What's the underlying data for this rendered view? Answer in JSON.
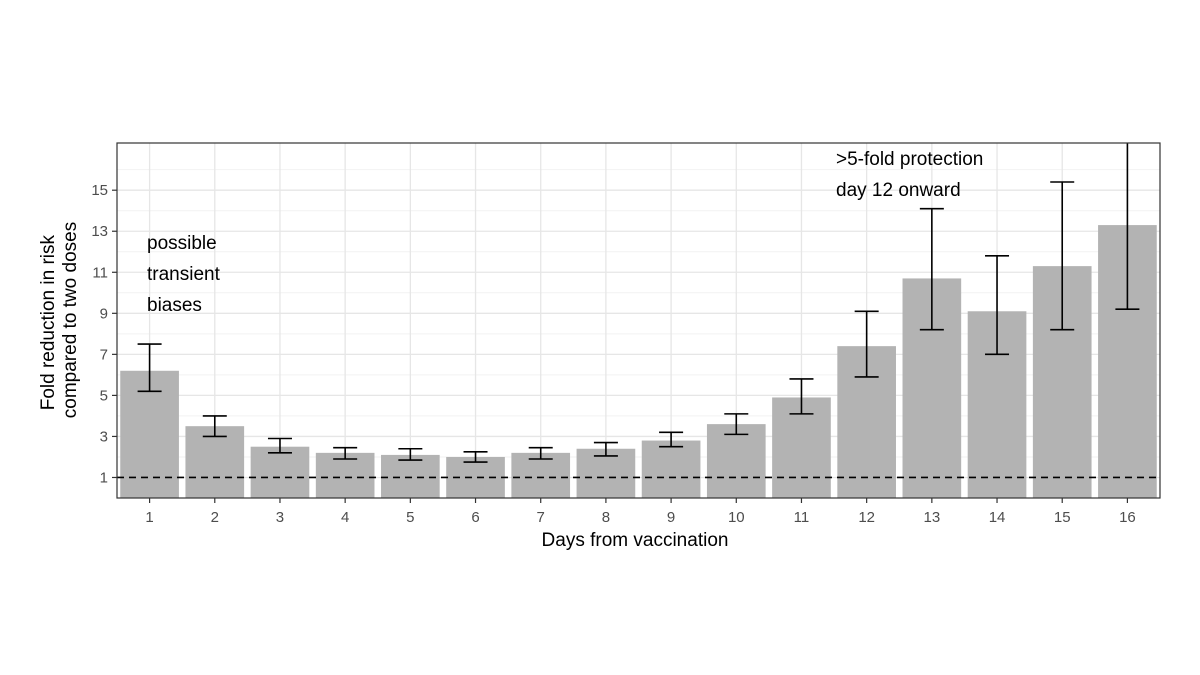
{
  "chart_data": {
    "type": "bar",
    "xlabel": "Days from vaccination",
    "ylabel_lines": [
      "Fold reduction in risk",
      "compared to two doses"
    ],
    "categories": [
      "1",
      "2",
      "3",
      "4",
      "5",
      "6",
      "7",
      "8",
      "9",
      "10",
      "11",
      "12",
      "13",
      "14",
      "15",
      "16"
    ],
    "values": [
      6.2,
      3.5,
      2.5,
      2.2,
      2.1,
      2.0,
      2.2,
      2.4,
      2.8,
      3.6,
      4.9,
      7.4,
      10.7,
      9.1,
      11.3,
      13.3
    ],
    "error_low": [
      5.2,
      3.0,
      2.2,
      1.9,
      1.85,
      1.75,
      1.9,
      2.05,
      2.5,
      3.1,
      4.1,
      5.9,
      8.2,
      7.0,
      8.2,
      9.2
    ],
    "error_high": [
      7.5,
      4.0,
      2.9,
      2.45,
      2.4,
      2.25,
      2.45,
      2.7,
      3.2,
      4.1,
      5.8,
      9.1,
      14.1,
      11.8,
      15.4,
      17.5
    ],
    "ylim": [
      0,
      17.3
    ],
    "yticks": [
      1,
      3,
      5,
      7,
      9,
      11,
      13,
      15
    ],
    "reference_line": 1,
    "bar_color": "#b3b3b3",
    "grid": true,
    "annotations": [
      {
        "lines": [
          "possible",
          "transient",
          "biases"
        ]
      },
      {
        "lines": [
          ">5-fold protection",
          "day 12 onward"
        ]
      }
    ]
  }
}
